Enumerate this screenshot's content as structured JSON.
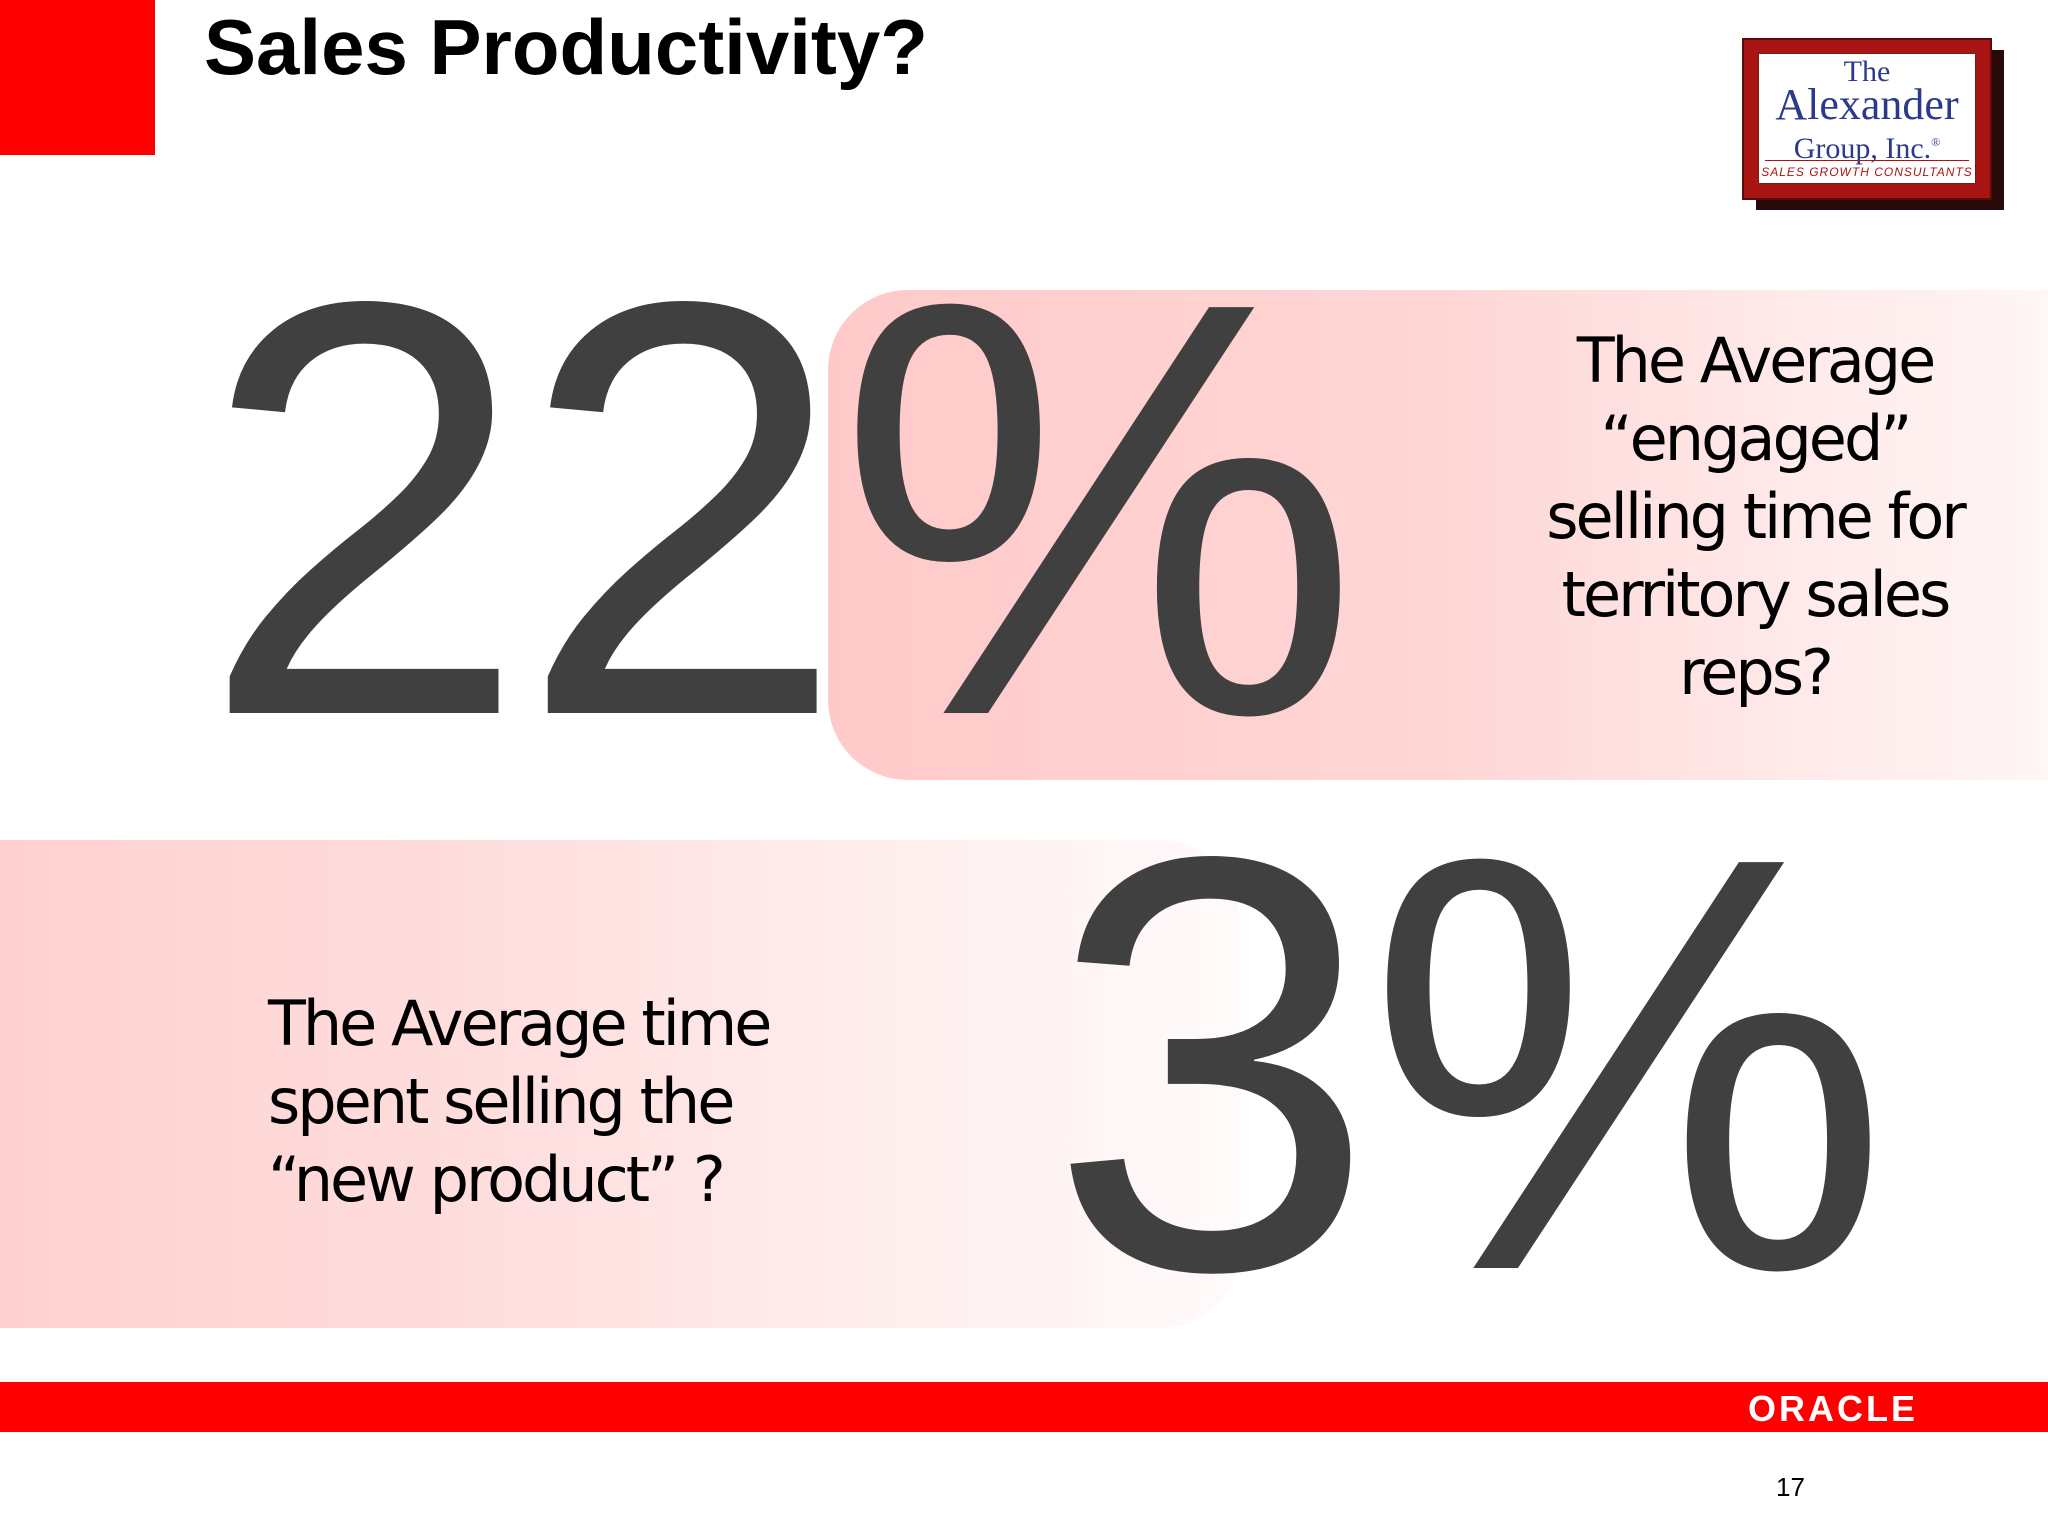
{
  "slide": {
    "title": "Sales Productivity?",
    "page_number": "17"
  },
  "logos": {
    "alexander": {
      "the": "The",
      "name": "Alexander",
      "group": "Group, Inc.",
      "registered": "®",
      "tagline": "SALES GROWTH CONSULTANTS"
    },
    "oracle": "ORACLE"
  },
  "stats": [
    {
      "value": "22%",
      "lines": [
        "The Average",
        "“engaged”",
        "selling time for",
        "territory sales",
        "reps?"
      ]
    },
    {
      "value": "3%",
      "lines": [
        "The Average time",
        "spent selling the",
        "“new product” ?"
      ]
    }
  ],
  "colors": {
    "accent_red": "#ff0000",
    "number_gray": "#404040",
    "band_pink": "#ffc9c9",
    "logo_blue": "#2b3a8c",
    "logo_red": "#a81512"
  }
}
